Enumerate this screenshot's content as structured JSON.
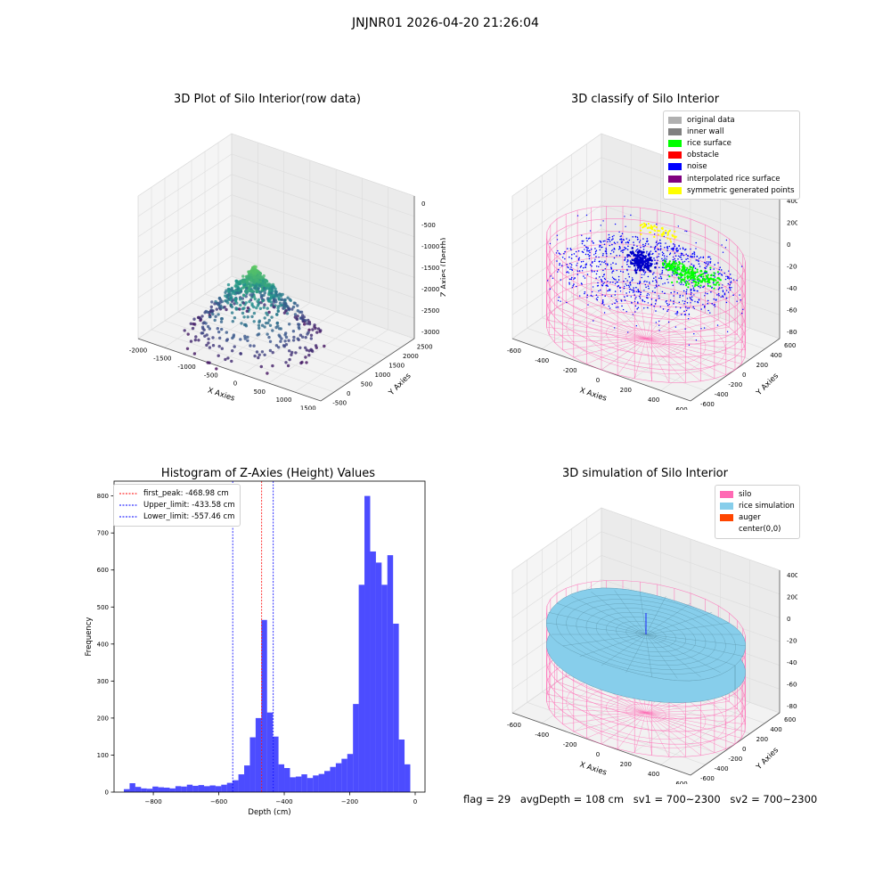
{
  "suptitle": "JNJNR01 2026-04-20 21:26:04",
  "chart_data": [
    {
      "type": "scatter",
      "title": "3D Plot of Silo Interior(row data)",
      "xlabel": "X Axies",
      "ylabel": "Y Axies",
      "zlabel": "Z Axies (Depth)",
      "xticks": [
        "-2000",
        "-1500",
        "-1000",
        "-500",
        "0",
        "500",
        "1000",
        "1500"
      ],
      "yticks": [
        "-500",
        "0",
        "500",
        "1000",
        "1500",
        "2000",
        "2500"
      ],
      "zticks": [
        "0",
        "-500",
        "-1000",
        "-1500",
        "-2000",
        "-2500",
        "-3000"
      ],
      "xlim": [
        -2000,
        1700
      ],
      "ylim": [
        -600,
        2700
      ],
      "zlim": [
        -3100,
        100
      ],
      "colormap": "viridis",
      "cluster_center": {
        "x": 0,
        "y": 0,
        "z": -1100
      }
    },
    {
      "type": "scatter",
      "title": "3D classify of Silo Interior",
      "xlabel": "X Axies",
      "ylabel": "Y Axies",
      "zlabel": "Z Axies (Depth)",
      "xticks": [
        "-600",
        "-400",
        "-200",
        "0",
        "200",
        "400",
        "600"
      ],
      "yticks": [
        "-600",
        "-400",
        "-200",
        "0",
        "200",
        "400",
        "600"
      ],
      "zticks": [
        "400",
        "200",
        "0",
        "-200",
        "-400",
        "-600",
        "-800"
      ],
      "legend": [
        {
          "label": "original data",
          "color": "#b0b0b0"
        },
        {
          "label": "inner wall",
          "color": "#808080"
        },
        {
          "label": "rice surface",
          "color": "#00ff00"
        },
        {
          "label": "obstacle",
          "color": "#ff0000"
        },
        {
          "label": "noise",
          "color": "#0000ff"
        },
        {
          "label": "interpolated rice surface",
          "color": "#800080"
        },
        {
          "label": "symmetric generated points",
          "color": "#ffff00"
        }
      ],
      "legend_position": "top-right",
      "silo_color": "#ff69b4"
    },
    {
      "type": "bar",
      "title": "Histogram of Z-Axies (Height) Values",
      "xlabel": "Depth (cm)",
      "ylabel": "Frequency",
      "xlim": [
        -920,
        30
      ],
      "ylim": [
        0,
        840
      ],
      "xticks": [
        -800,
        -600,
        -400,
        -200,
        0
      ],
      "yticks": [
        0,
        100,
        200,
        300,
        400,
        500,
        600,
        700,
        800
      ],
      "bar_color": "#0000ff",
      "bin_start": -890,
      "bin_width": 17.5,
      "values": [
        8,
        24,
        14,
        10,
        9,
        15,
        13,
        12,
        10,
        16,
        15,
        20,
        17,
        19,
        16,
        18,
        16,
        20,
        25,
        32,
        48,
        72,
        148,
        200,
        465,
        215,
        150,
        75,
        65,
        40,
        42,
        48,
        38,
        45,
        49,
        57,
        68,
        78,
        90,
        103,
        238,
        560,
        800,
        650,
        620,
        560,
        640,
        455,
        142,
        75
      ],
      "lines": [
        {
          "label": "first_peak: -468.98 cm",
          "x": -468.98,
          "color": "#ff0000"
        },
        {
          "label": "Upper_limit: -433.58 cm",
          "x": -433.58,
          "color": "#0000ff"
        },
        {
          "label": "Lower_limit: -557.46 cm",
          "x": -557.46,
          "color": "#0000ff"
        }
      ],
      "legend_position": "top-left"
    },
    {
      "type": "surface",
      "title": "3D simulation of Silo Interior",
      "xlabel": "X Axies",
      "ylabel": "Y Axies",
      "zlabel": "Z Axies (Depth)",
      "xticks": [
        "-600",
        "-400",
        "-200",
        "0",
        "200",
        "400",
        "600"
      ],
      "yticks": [
        "-600",
        "-400",
        "-200",
        "0",
        "200",
        "400",
        "600"
      ],
      "zticks": [
        "400",
        "200",
        "0",
        "-200",
        "-400",
        "-600",
        "-800"
      ],
      "legend": [
        {
          "label": "silo",
          "color": "#ff69b4"
        },
        {
          "label": "rice simulation",
          "color": "#87ceeb"
        },
        {
          "label": "auger",
          "color": "#ff4500"
        },
        {
          "label": "center(0,0)",
          "color": "#ffffff"
        }
      ],
      "legend_position": "top-right"
    }
  ],
  "footer": {
    "flag": "flag = 29",
    "avg": "avgDepth = 108 cm",
    "sv1": "sv1 = 700~2300",
    "sv2": "sv2 = 700~2300"
  }
}
